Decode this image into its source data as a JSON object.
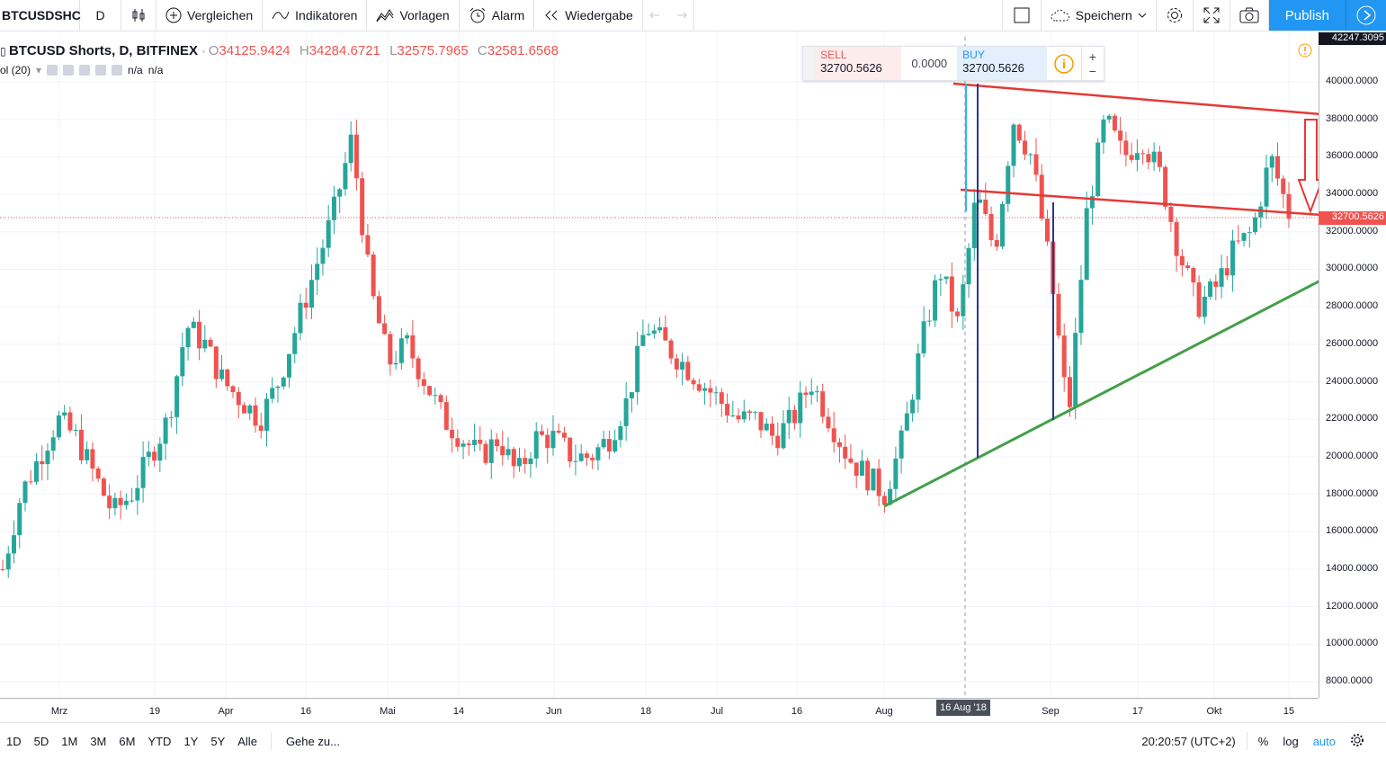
{
  "toolbar": {
    "symbol": "BTCUSDSHC",
    "interval": "D",
    "compare_label": "Vergleichen",
    "indicators_label": "Indikatoren",
    "templates_label": "Vorlagen",
    "alert_label": "Alarm",
    "replay_label": "Wiedergabe",
    "save_label": "Speichern",
    "publish_label": "Publish"
  },
  "legend": {
    "title": "BTCUSD Shorts, D, BITFINEX",
    "o_label": "O",
    "o_value": "34125.9424",
    "h_label": "H",
    "h_value": "34284.6721",
    "l_label": "L",
    "l_value": "32575.7965",
    "c_label": "C",
    "c_value": "32581.6568",
    "vol_label": "ol (20)",
    "vol_value1": "n/a",
    "vol_value2": "n/a"
  },
  "trade": {
    "sell_label": "SELL",
    "sell_value": "32700.5626",
    "spread": "0.0000",
    "buy_label": "BUY",
    "buy_value": "32700.5626"
  },
  "price_axis": {
    "top_label": "42247.3095",
    "current_label": "32700.5626",
    "ticks": [
      "40000.0000",
      "38000.0000",
      "36000.0000",
      "34000.0000",
      "32000.0000",
      "30000.0000",
      "28000.0000",
      "26000.0000",
      "24000.0000",
      "22000.0000",
      "20000.0000",
      "18000.0000",
      "16000.0000",
      "14000.0000",
      "12000.0000",
      "10000.0000",
      "8000.0000"
    ]
  },
  "time_axis": {
    "ticks": [
      "Mrz",
      "19",
      "Apr",
      "16",
      "Mai",
      "14",
      "Jun",
      "18",
      "Jul",
      "16",
      "Aug",
      "Sep",
      "17",
      "Okt",
      "15"
    ],
    "cursor_label": "16 Aug '18"
  },
  "bottombar": {
    "ranges": [
      "1D",
      "5D",
      "1M",
      "3M",
      "6M",
      "YTD",
      "1Y",
      "5Y",
      "Alle"
    ],
    "goto_label": "Gehe zu...",
    "clock": "20:20:57 (UTC+2)",
    "percent_label": "%",
    "log_label": "log",
    "auto_label": "auto"
  },
  "colors": {
    "up": "#26a69a",
    "down": "#ef5350",
    "trend_red": "#e53935",
    "trend_green": "#43a047",
    "marker_blue": "#2962ff",
    "accent": "#2196f3"
  },
  "chart_data": {
    "type": "candlestick",
    "title": "BTCUSD Shorts, D, BITFINEX",
    "ylim": [
      7000,
      42000
    ],
    "y_ticks": [
      8000,
      10000,
      12000,
      14000,
      16000,
      18000,
      20000,
      22000,
      24000,
      26000,
      28000,
      30000,
      32000,
      34000,
      36000,
      38000,
      40000
    ],
    "x_ticks": [
      "Mrz",
      "19",
      "Apr",
      "16",
      "Mai",
      "14",
      "Jun",
      "18",
      "Jul",
      "16",
      "Aug",
      "Sep",
      "17",
      "Okt",
      "15"
    ],
    "current_price": 32700.5626,
    "last_ohlc": {
      "o": 34125.9424,
      "h": 34284.6721,
      "l": 32575.7965,
      "c": 32581.6568
    },
    "closes_approx": [
      14000,
      18000,
      20000,
      22000,
      21000,
      19000,
      17000,
      18000,
      20000,
      22000,
      27000,
      26000,
      24000,
      23000,
      22000,
      24000,
      27000,
      30000,
      33000,
      37000,
      29000,
      25000,
      26000,
      24000,
      22000,
      21000,
      20000,
      21000,
      19000,
      21000,
      21000,
      20000,
      20000,
      21000,
      23000,
      27000,
      26000,
      25000,
      24000,
      23000,
      22000,
      22000,
      21000,
      22000,
      24000,
      22000,
      20000,
      19000,
      18000,
      21000,
      26000,
      30000,
      27000,
      34000,
      31000,
      38000,
      36000,
      30000,
      22000,
      33000,
      38000,
      36000,
      37000,
      35000,
      31000,
      28000,
      29000,
      31000,
      32000,
      36000,
      33000
    ]
  }
}
